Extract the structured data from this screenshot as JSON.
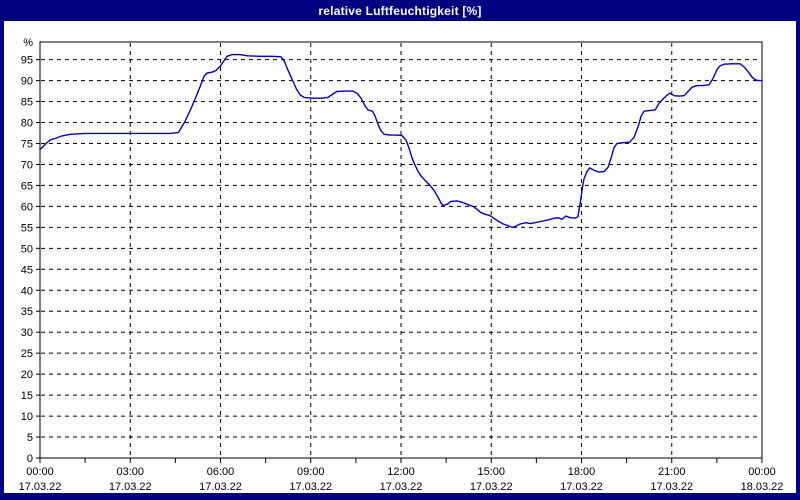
{
  "window": {
    "title": "relative Luftfeuchtigkeit [%]"
  },
  "colors": {
    "title_bar_bg": "#000080",
    "title_text": "#ffffff",
    "frame_border": "#000080",
    "plot_bg": "#ffffff",
    "grid": "#000000",
    "axis": "#000000",
    "line": "#0000bf",
    "label_text": "#000000"
  },
  "chart_data": {
    "type": "line",
    "title": "relative Luftfeuchtigkeit [%]",
    "ylabel": "%",
    "xlabel": "",
    "grid": true,
    "legend": "none",
    "x_axis": {
      "range_hours": [
        0,
        24
      ],
      "major_tick_hours": 3,
      "minor_tick_hours": 1.5,
      "tick_times": [
        "00:00",
        "03:00",
        "06:00",
        "09:00",
        "12:00",
        "15:00",
        "18:00",
        "21:00",
        "00:00"
      ],
      "tick_dates": [
        "17.03.22",
        "17.03.22",
        "17.03.22",
        "17.03.22",
        "17.03.22",
        "17.03.22",
        "17.03.22",
        "17.03.22",
        "18.03.22"
      ]
    },
    "y_axis": {
      "min": 0,
      "max": 99.2,
      "max_labeled_tick": 95,
      "tick_step": 5,
      "unit": "%"
    },
    "series": [
      {
        "name": "relative Luftfeuchtigkeit",
        "color": "#0000bf",
        "points": [
          [
            0,
            73.6
          ],
          [
            0.1,
            74.2
          ],
          [
            0.2,
            75.0
          ],
          [
            0.33,
            75.8
          ],
          [
            0.5,
            76.2
          ],
          [
            0.73,
            76.8
          ],
          [
            1.0,
            77.2
          ],
          [
            1.5,
            77.4
          ],
          [
            2.5,
            77.4
          ],
          [
            3.5,
            77.4
          ],
          [
            4.3,
            77.4
          ],
          [
            4.6,
            77.6
          ],
          [
            4.8,
            80.0
          ],
          [
            5.0,
            83.0
          ],
          [
            5.15,
            85.5
          ],
          [
            5.32,
            88.5
          ],
          [
            5.45,
            91.0
          ],
          [
            5.55,
            91.8
          ],
          [
            5.72,
            92.0
          ],
          [
            5.85,
            92.4
          ],
          [
            6.0,
            93.5
          ],
          [
            6.12,
            94.8
          ],
          [
            6.22,
            95.8
          ],
          [
            6.38,
            96.2
          ],
          [
            6.65,
            96.2
          ],
          [
            6.9,
            95.9
          ],
          [
            7.3,
            95.8
          ],
          [
            7.7,
            95.8
          ],
          [
            8.0,
            95.7
          ],
          [
            8.11,
            94.8
          ],
          [
            8.24,
            92.5
          ],
          [
            8.38,
            90.3
          ],
          [
            8.51,
            88.2
          ],
          [
            8.64,
            86.6
          ],
          [
            8.78,
            86.0
          ],
          [
            9.05,
            85.8
          ],
          [
            9.35,
            85.8
          ],
          [
            9.57,
            86.0
          ],
          [
            9.74,
            86.8
          ],
          [
            9.87,
            87.4
          ],
          [
            10.15,
            87.5
          ],
          [
            10.4,
            87.5
          ],
          [
            10.54,
            87.0
          ],
          [
            10.67,
            85.8
          ],
          [
            10.8,
            84.0
          ],
          [
            10.9,
            83.0
          ],
          [
            11.05,
            82.7
          ],
          [
            11.14,
            81.5
          ],
          [
            11.24,
            79.5
          ],
          [
            11.34,
            78.0
          ],
          [
            11.44,
            77.2
          ],
          [
            11.65,
            77.0
          ],
          [
            11.85,
            77.0
          ],
          [
            12.03,
            76.9
          ],
          [
            12.17,
            75.8
          ],
          [
            12.27,
            73.8
          ],
          [
            12.37,
            71.5
          ],
          [
            12.47,
            69.8
          ],
          [
            12.57,
            68.3
          ],
          [
            12.67,
            67.2
          ],
          [
            12.8,
            66.2
          ],
          [
            12.96,
            65.0
          ],
          [
            13.1,
            63.8
          ],
          [
            13.23,
            62.2
          ],
          [
            13.33,
            60.8
          ],
          [
            13.4,
            60.2
          ],
          [
            13.53,
            60.5
          ],
          [
            13.66,
            61.2
          ],
          [
            13.86,
            61.3
          ],
          [
            14.06,
            60.9
          ],
          [
            14.23,
            60.4
          ],
          [
            14.4,
            60.0
          ],
          [
            14.53,
            59.3
          ],
          [
            14.66,
            58.5
          ],
          [
            14.8,
            58.1
          ],
          [
            14.93,
            57.9
          ],
          [
            15.06,
            57.3
          ],
          [
            15.22,
            56.5
          ],
          [
            15.4,
            55.8
          ],
          [
            15.56,
            55.4
          ],
          [
            15.7,
            55.0
          ],
          [
            15.82,
            55.3
          ],
          [
            15.96,
            55.8
          ],
          [
            16.16,
            56.1
          ],
          [
            16.3,
            55.9
          ],
          [
            16.45,
            56.1
          ],
          [
            16.65,
            56.4
          ],
          [
            16.9,
            56.8
          ],
          [
            17.05,
            57.1
          ],
          [
            17.22,
            57.3
          ],
          [
            17.35,
            56.9
          ],
          [
            17.48,
            57.7
          ],
          [
            17.62,
            57.3
          ],
          [
            17.78,
            57.2
          ],
          [
            17.88,
            57.5
          ],
          [
            17.95,
            60.5
          ],
          [
            18.02,
            64.0
          ],
          [
            18.08,
            66.5
          ],
          [
            18.18,
            68.3
          ],
          [
            18.28,
            69.2
          ],
          [
            18.42,
            68.6
          ],
          [
            18.58,
            68.2
          ],
          [
            18.75,
            68.3
          ],
          [
            18.88,
            69.3
          ],
          [
            18.98,
            71.5
          ],
          [
            19.08,
            74.0
          ],
          [
            19.18,
            75.0
          ],
          [
            19.4,
            75.2
          ],
          [
            19.6,
            75.3
          ],
          [
            19.75,
            76.5
          ],
          [
            19.88,
            79.0
          ],
          [
            19.98,
            81.5
          ],
          [
            20.08,
            82.7
          ],
          [
            20.28,
            82.9
          ],
          [
            20.45,
            83.0
          ],
          [
            20.58,
            84.6
          ],
          [
            20.71,
            85.6
          ],
          [
            20.84,
            86.5
          ],
          [
            20.94,
            87.0
          ],
          [
            21.08,
            86.4
          ],
          [
            21.24,
            86.3
          ],
          [
            21.41,
            86.4
          ],
          [
            21.54,
            87.4
          ],
          [
            21.67,
            88.4
          ],
          [
            21.84,
            88.8
          ],
          [
            22.04,
            88.8
          ],
          [
            22.24,
            89.0
          ],
          [
            22.37,
            90.5
          ],
          [
            22.5,
            92.6
          ],
          [
            22.6,
            93.5
          ],
          [
            22.74,
            93.9
          ],
          [
            23.0,
            94.0
          ],
          [
            23.27,
            94.0
          ],
          [
            23.4,
            93.3
          ],
          [
            23.53,
            92.2
          ],
          [
            23.67,
            90.8
          ],
          [
            23.77,
            90.2
          ],
          [
            23.87,
            90.0
          ],
          [
            24.0,
            90.0
          ]
        ]
      }
    ]
  }
}
